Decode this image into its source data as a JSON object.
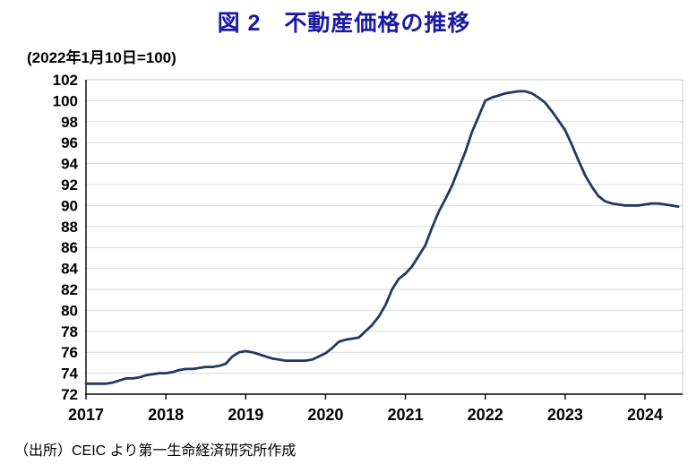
{
  "title": "図 2　不動産価格の推移",
  "subtitle": "(2022年1月10日=100)",
  "source_note": "（出所）CEIC より第一生命経済研究所作成",
  "colors": {
    "title_text": "#1a1aa6",
    "line": "#1f3864",
    "grid": "#d9d9d9",
    "border": "#c8c8c8",
    "axis": "#000000"
  },
  "chart_data": {
    "type": "line",
    "title": "図 2　不動産価格の推移",
    "index_note": "(2022年1月10日=100)",
    "xlabel": "",
    "ylabel": "",
    "x_axis": {
      "start": "2017-01",
      "end": "2024-06",
      "interval": "monthly"
    },
    "x_tick_labels": [
      "2017",
      "2018",
      "2019",
      "2020",
      "2021",
      "2022",
      "2023",
      "2024"
    ],
    "y_tick_labels": [
      72,
      74,
      76,
      78,
      80,
      82,
      84,
      86,
      88,
      90,
      92,
      94,
      96,
      98,
      100,
      102
    ],
    "ylim": [
      72,
      102
    ],
    "grid": "horizontal",
    "legend": "none",
    "series": [
      {
        "values": [
          73.0,
          73.0,
          73.0,
          73.0,
          73.1,
          73.3,
          73.5,
          73.5,
          73.6,
          73.8,
          73.9,
          74.0,
          74.0,
          74.1,
          74.3,
          74.4,
          74.4,
          74.5,
          74.6,
          74.6,
          74.7,
          74.9,
          75.6,
          76.0,
          76.1,
          76.0,
          75.8,
          75.6,
          75.4,
          75.3,
          75.2,
          75.2,
          75.2,
          75.2,
          75.3,
          75.6,
          75.9,
          76.4,
          77.0,
          77.2,
          77.3,
          77.4,
          78.0,
          78.6,
          79.4,
          80.5,
          82.0,
          83.0,
          83.5,
          84.2,
          85.2,
          86.2,
          87.9,
          89.4,
          90.6,
          91.9,
          93.5,
          95.1,
          97.0,
          98.5,
          100.0,
          100.3,
          100.5,
          100.7,
          100.8,
          100.9,
          100.9,
          100.7,
          100.3,
          99.8,
          99.0,
          98.1,
          97.2,
          95.8,
          94.3,
          92.9,
          91.8,
          90.9,
          90.4,
          90.2,
          90.1,
          90.0,
          90.0,
          90.0,
          90.1,
          90.2,
          90.2,
          90.1,
          90.0,
          89.9
        ]
      }
    ]
  }
}
